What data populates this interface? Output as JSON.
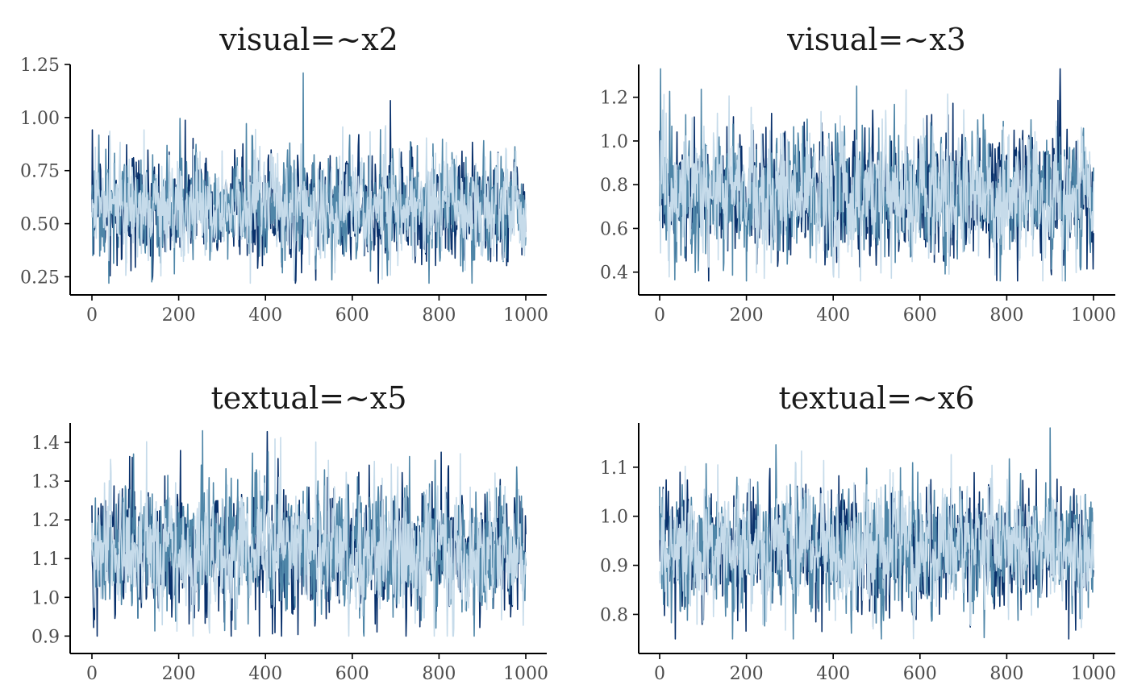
{
  "chart_data": [
    {
      "type": "line",
      "title": "visual=~x2",
      "xlim": [
        0,
        1000
      ],
      "ylim": [
        0.21,
        1.25
      ],
      "x_ticks": [
        0,
        200,
        400,
        600,
        800,
        1000
      ],
      "y_ticks": [
        0.25,
        0.5,
        0.75,
        1.0,
        1.25
      ],
      "y_tick_labels": [
        "0.25",
        "0.50",
        "0.75",
        "1.00",
        "1.25"
      ],
      "iterations": 1000,
      "trace_summary": {
        "center": 0.57,
        "spread": 0.11,
        "min": 0.22,
        "max": 1.21,
        "peak_at": 487
      },
      "series": [
        {
          "color": "#08306b"
        },
        {
          "color": "#4f86a8"
        },
        {
          "color": "#c6dbea"
        }
      ],
      "grid": false,
      "legend": "none"
    },
    {
      "type": "line",
      "title": "visual=~x3",
      "xlim": [
        0,
        1000
      ],
      "ylim": [
        0.34,
        1.35
      ],
      "x_ticks": [
        0,
        200,
        400,
        600,
        800,
        1000
      ],
      "y_ticks": [
        0.4,
        0.6,
        0.8,
        1.0,
        1.2
      ],
      "y_tick_labels": [
        "0.4",
        "0.6",
        "0.8",
        "1.0",
        "1.2"
      ],
      "iterations": 1000,
      "trace_summary": {
        "center": 0.75,
        "spread": 0.13,
        "min": 0.36,
        "max": 1.33,
        "peak_at": 2
      },
      "series": [
        {
          "color": "#08306b"
        },
        {
          "color": "#4f86a8"
        },
        {
          "color": "#c6dbea"
        }
      ],
      "grid": false,
      "legend": "none"
    },
    {
      "type": "line",
      "title": "textual=~x5",
      "xlim": [
        0,
        1000
      ],
      "ylim": [
        0.88,
        1.45
      ],
      "x_ticks": [
        0,
        200,
        400,
        600,
        800,
        1000
      ],
      "y_ticks": [
        0.9,
        1.0,
        1.1,
        1.2,
        1.3,
        1.4
      ],
      "y_tick_labels": [
        "0.9",
        "1.0",
        "1.1",
        "1.2",
        "1.3",
        "1.4"
      ],
      "iterations": 1000,
      "trace_summary": {
        "center": 1.12,
        "spread": 0.075,
        "min": 0.9,
        "max": 1.43,
        "peak_at": 255
      },
      "series": [
        {
          "color": "#08306b"
        },
        {
          "color": "#4f86a8"
        },
        {
          "color": "#c6dbea"
        }
      ],
      "grid": false,
      "legend": "none"
    },
    {
      "type": "line",
      "title": "textual=~x6",
      "xlim": [
        0,
        1000
      ],
      "ylim": [
        0.74,
        1.19
      ],
      "x_ticks": [
        0,
        200,
        400,
        600,
        800,
        1000
      ],
      "y_ticks": [
        0.8,
        0.9,
        1.0,
        1.1
      ],
      "y_tick_labels": [
        "0.8",
        "0.9",
        "1.0",
        "1.1"
      ],
      "iterations": 1000,
      "trace_summary": {
        "center": 0.935,
        "spread": 0.055,
        "min": 0.75,
        "max": 1.18,
        "peak_at": 900
      },
      "series": [
        {
          "color": "#08306b"
        },
        {
          "color": "#4f86a8"
        },
        {
          "color": "#c6dbea"
        }
      ],
      "grid": false,
      "legend": "none"
    }
  ]
}
